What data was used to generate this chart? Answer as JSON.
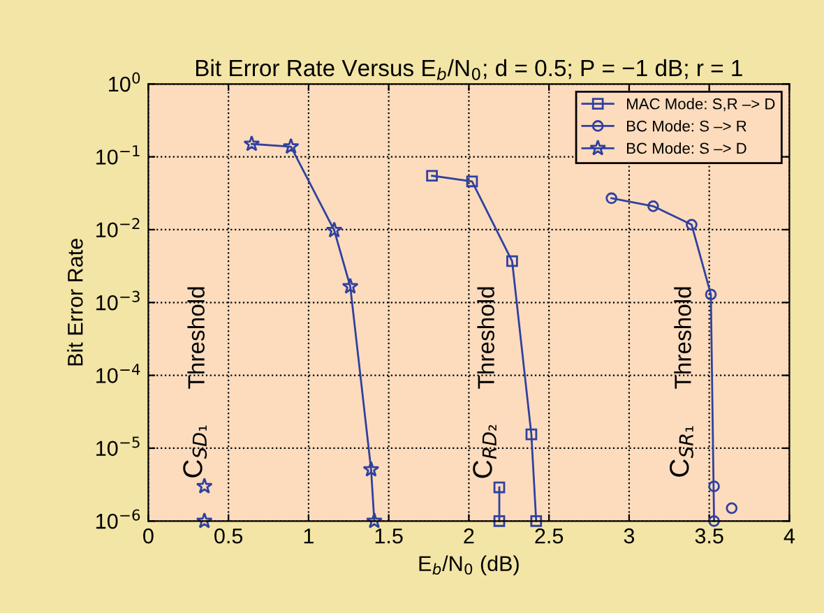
{
  "chart_data": {
    "type": "line",
    "title": "Bit Error Rate Versus E$_{b}$/N$_{0}$; d = 0.5; P = −1 dB; r = 1",
    "xlabel": "E$_{b}$/N$_{0}$ (dB)",
    "ylabel": "Bit Error Rate",
    "log": "y",
    "xlim": [
      0,
      4
    ],
    "xticks": [
      0,
      0.5,
      1,
      1.5,
      2,
      2.5,
      3,
      3.5,
      4
    ],
    "ylim": [
      1e-06,
      1
    ],
    "yticks": [
      {
        "value": 1e-06,
        "label": "10$^{−6}$"
      },
      {
        "value": 1e-05,
        "label": "10$^{−5}$"
      },
      {
        "value": 0.0001,
        "label": "10$^{−4}$"
      },
      {
        "value": 0.001,
        "label": "10$^{−3}$"
      },
      {
        "value": 0.01,
        "label": "10$^{−2}$"
      },
      {
        "value": 0.1,
        "label": "10$^{−1}$"
      },
      {
        "value": 1,
        "label": "10$^{0}$"
      }
    ],
    "grid": true,
    "legend": "top right",
    "line_style": "solid",
    "series": [
      {
        "name": "MAC Mode: S,R –> D",
        "color": "#3040a0",
        "marker": "square",
        "x": [
          1.77,
          2.02,
          2.27,
          2.39,
          2.42
        ],
        "values": [
          0.055,
          0.046,
          0.0037,
          1.55e-05,
          1e-06
        ]
      },
      {
        "name": "BC Mode: S –> R",
        "color": "#3040a0",
        "marker": "circle",
        "x": [
          2.89,
          3.15,
          3.39,
          3.51,
          3.53
        ],
        "values": [
          0.027,
          0.021,
          0.0117,
          0.00129,
          1e-06
        ]
      },
      {
        "name": "BC Mode: S –> D",
        "color": "#3040a0",
        "marker": "star",
        "x": [
          0.645,
          0.89,
          1.16,
          1.26,
          1.39,
          1.41
        ],
        "values": [
          0.15,
          0.138,
          0.0098,
          0.00166,
          5.1e-06,
          1e-06
        ]
      },
      {
        "color": "#3040a0",
        "marker": "square",
        "x": [
          2.19,
          2.19
        ],
        "values": [
          2.9e-06,
          1e-06
        ]
      },
      {
        "type": "scatter",
        "color": "#3040a0",
        "marker": "circle",
        "x": [
          3.53
        ],
        "values": [
          3e-06
        ]
      },
      {
        "type": "scatter",
        "color": "#3040a0",
        "marker": "circle",
        "x": [
          3.64
        ],
        "values": [
          1.5e-06
        ]
      },
      {
        "type": "scatter",
        "color": "#3040a0",
        "marker": "star",
        "x": [
          0.35,
          0.35
        ],
        "values": [
          3e-06,
          1e-06
        ]
      }
    ],
    "annotations": [
      "Threshold",
      "C$_{SD₁}$",
      "Threshold",
      "C$_{RD₂}$",
      "Threshold",
      "C$_{SR₁}$"
    ]
  }
}
